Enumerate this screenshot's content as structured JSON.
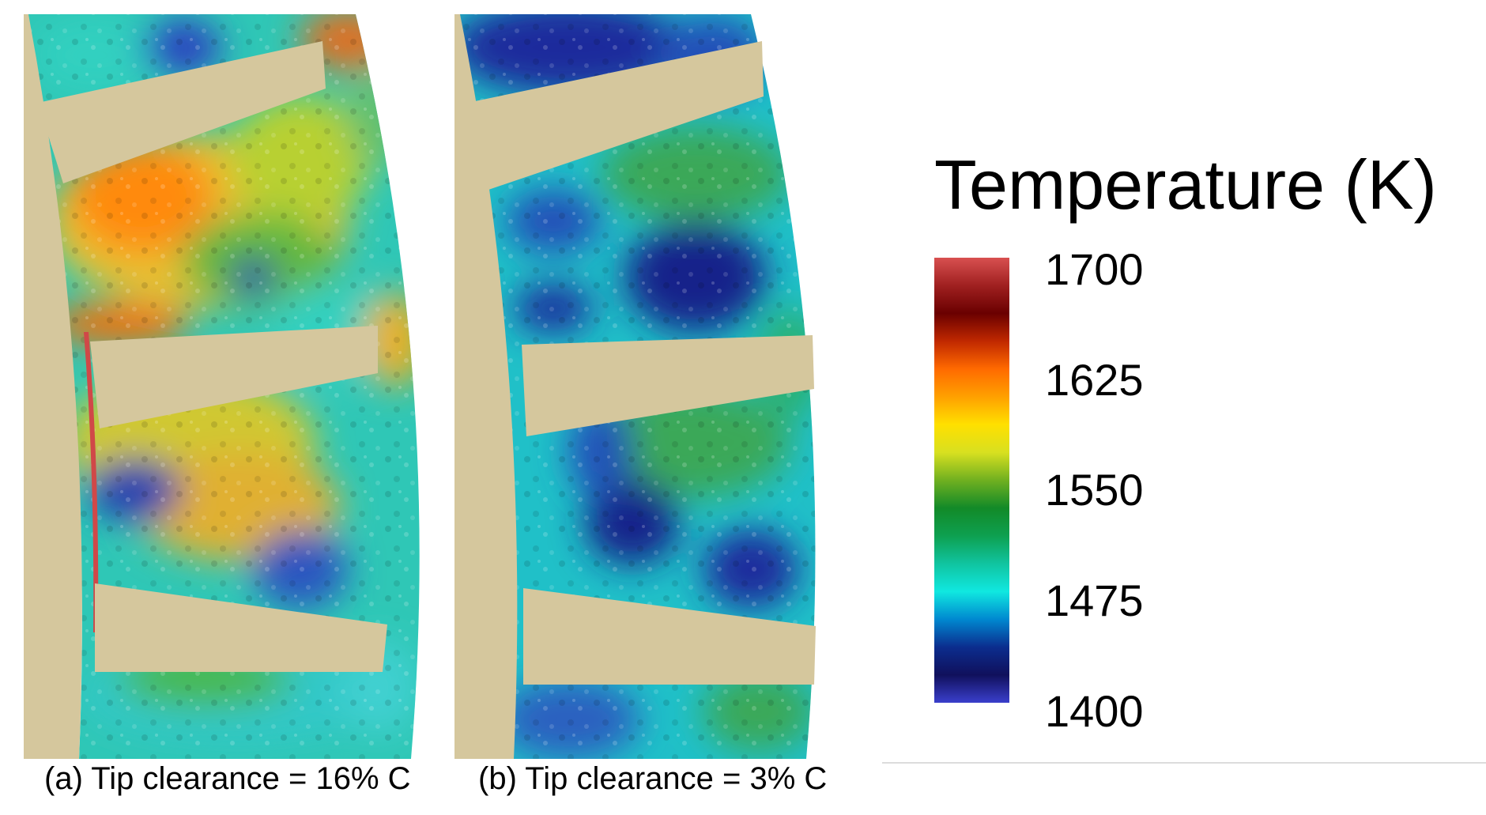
{
  "legend": {
    "title": "Temperature (K)",
    "ticks": [
      "1700",
      "1625",
      "1550",
      "1475",
      "1400"
    ],
    "range": [
      1400,
      1700
    ],
    "stops": [
      "#3a3fcc",
      "#10105c",
      "#0b2d8e",
      "#0088d0",
      "#10e8e0",
      "#10c4a0",
      "#0ea050",
      "#128a28",
      "#70b020",
      "#d8e020",
      "#ffe000",
      "#ffa000",
      "#ff6a00",
      "#c02800",
      "#6a0000",
      "#a02020",
      "#d85050"
    ]
  },
  "panels": [
    {
      "caption": "(a) Tip clearance = 16% C",
      "blade_color": "#d5c79d",
      "hot_edge_color": "#d04848"
    },
    {
      "caption": "(b) Tip clearance = 3% C",
      "blade_color": "#d5c79d"
    }
  ]
}
